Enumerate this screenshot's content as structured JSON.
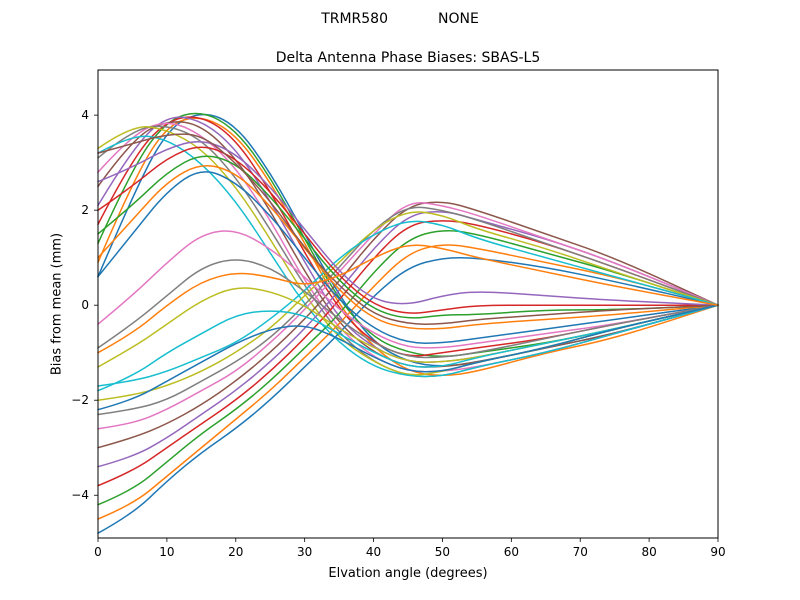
{
  "header": {
    "receiver": "TRMR580",
    "antenna": "NONE"
  },
  "chart_data": {
    "type": "line",
    "suptitle_left": "TRMR580",
    "suptitle_right": "NONE",
    "title": "Delta Antenna Phase Biases: SBAS-L5",
    "xlabel": "Elvation angle (degrees)",
    "ylabel": "Bias from mean (mm)",
    "xlim": [
      0,
      90
    ],
    "ylim": [
      -4.9,
      4.95
    ],
    "xticks": [
      0,
      10,
      20,
      30,
      40,
      50,
      60,
      70,
      80,
      90
    ],
    "yticks": [
      -4,
      -2,
      0,
      2,
      4
    ],
    "grid": false,
    "legend": null,
    "palette": [
      "#1f77b4",
      "#ff7f0e",
      "#2ca02c",
      "#d62728",
      "#9467bd",
      "#8c564b",
      "#e377c2",
      "#7f7f7f",
      "#bcbd22",
      "#17becf"
    ],
    "x": [
      0,
      5,
      10,
      15,
      20,
      25,
      30,
      35,
      40,
      45,
      50,
      55,
      65,
      75,
      90
    ],
    "series": [
      {
        "values": [
          0.6,
          2.3,
          3.7,
          4.1,
          3.8,
          2.8,
          1.5,
          0.2,
          -0.8,
          -1.2,
          -1.3,
          -1.2,
          -0.9,
          -0.6,
          0
        ]
      },
      {
        "values": [
          0.9,
          2.6,
          3.8,
          4.0,
          3.6,
          2.6,
          1.3,
          0.0,
          -0.9,
          -1.4,
          -1.5,
          -1.4,
          -1.0,
          -0.7,
          0
        ]
      },
      {
        "values": [
          1.3,
          2.9,
          3.9,
          4.1,
          3.7,
          2.7,
          1.4,
          0.1,
          -0.7,
          -1.0,
          -1.1,
          -1.0,
          -0.8,
          -0.5,
          0
        ]
      },
      {
        "values": [
          1.7,
          3.1,
          3.9,
          4.0,
          3.5,
          2.4,
          1.1,
          -0.1,
          -0.8,
          -1.1,
          -1.0,
          -0.9,
          -0.7,
          -0.4,
          0
        ]
      },
      {
        "values": [
          2.1,
          3.3,
          4.0,
          3.9,
          3.3,
          2.2,
          0.9,
          -0.3,
          -0.9,
          -1.2,
          -1.2,
          -1.1,
          -0.8,
          -0.5,
          0
        ]
      },
      {
        "values": [
          2.5,
          3.5,
          3.9,
          3.8,
          3.1,
          2.0,
          0.7,
          -0.4,
          -1.0,
          -1.3,
          -1.3,
          -1.2,
          -0.9,
          -0.6,
          0
        ]
      },
      {
        "values": [
          2.8,
          3.6,
          3.9,
          3.6,
          2.9,
          1.8,
          0.5,
          -0.5,
          -1.1,
          -1.4,
          -1.4,
          -1.3,
          -1.0,
          -0.6,
          0
        ]
      },
      {
        "values": [
          3.1,
          3.7,
          3.8,
          3.5,
          2.7,
          1.6,
          0.4,
          -0.6,
          -1.2,
          -1.5,
          -1.5,
          -1.3,
          -1.0,
          -0.6,
          0
        ]
      },
      {
        "values": [
          3.3,
          3.8,
          3.7,
          3.3,
          2.5,
          1.4,
          0.2,
          -0.7,
          -1.2,
          -1.5,
          -1.4,
          -1.2,
          -0.9,
          -0.5,
          0
        ]
      },
      {
        "values": [
          3.2,
          3.6,
          3.5,
          3.0,
          2.2,
          1.1,
          0.0,
          -0.8,
          -1.3,
          -1.5,
          -1.5,
          -1.3,
          -1.0,
          -0.6,
          0
        ]
      },
      {
        "values": [
          -4.8,
          -4.4,
          -3.7,
          -3.1,
          -2.6,
          -2.0,
          -1.3,
          -0.6,
          0.2,
          0.8,
          1.0,
          1.0,
          0.8,
          0.5,
          0
        ]
      },
      {
        "values": [
          -4.5,
          -4.2,
          -3.6,
          -3.0,
          -2.4,
          -1.8,
          -1.1,
          -0.4,
          0.4,
          1.1,
          1.3,
          1.2,
          0.9,
          0.6,
          0
        ]
      },
      {
        "values": [
          -4.2,
          -3.9,
          -3.3,
          -2.7,
          -2.2,
          -1.6,
          -0.9,
          -0.2,
          0.7,
          1.4,
          1.6,
          1.5,
          1.1,
          0.7,
          0
        ]
      },
      {
        "values": [
          -3.8,
          -3.5,
          -3.0,
          -2.5,
          -2.0,
          -1.4,
          -0.7,
          0.1,
          1.0,
          1.7,
          1.8,
          1.7,
          1.3,
          0.8,
          0
        ]
      },
      {
        "values": [
          -3.4,
          -3.2,
          -2.8,
          -2.3,
          -1.8,
          -1.2,
          -0.5,
          0.3,
          1.2,
          1.9,
          2.0,
          1.8,
          1.4,
          0.9,
          0
        ]
      },
      {
        "values": [
          -3.0,
          -2.8,
          -2.5,
          -2.1,
          -1.6,
          -1.0,
          -0.3,
          0.5,
          1.4,
          2.1,
          2.2,
          2.0,
          1.5,
          1.0,
          0
        ]
      },
      {
        "values": [
          -2.6,
          -2.5,
          -2.2,
          -1.8,
          -1.4,
          -0.8,
          -0.1,
          0.7,
          1.5,
          2.2,
          2.1,
          1.9,
          1.4,
          0.9,
          0
        ]
      },
      {
        "values": [
          -2.3,
          -2.2,
          -2.0,
          -1.6,
          -1.2,
          -0.7,
          0.0,
          0.8,
          1.6,
          2.1,
          2.0,
          1.8,
          1.3,
          0.8,
          0
        ]
      },
      {
        "values": [
          -2.0,
          -1.9,
          -1.7,
          -1.4,
          -1.0,
          -0.5,
          0.2,
          0.9,
          1.6,
          2.0,
          1.9,
          1.6,
          1.2,
          0.7,
          0
        ]
      },
      {
        "values": [
          -1.7,
          -1.6,
          -1.4,
          -1.1,
          -0.8,
          -0.3,
          0.3,
          1.0,
          1.5,
          1.8,
          1.7,
          1.4,
          1.0,
          0.6,
          0
        ]
      },
      {
        "values": [
          0.6,
          1.5,
          2.4,
          2.9,
          2.6,
          1.9,
          1.0,
          0.1,
          -0.5,
          -0.8,
          -0.8,
          -0.7,
          -0.5,
          -0.3,
          0
        ]
      },
      {
        "values": [
          1.0,
          1.8,
          2.6,
          3.0,
          2.8,
          2.1,
          1.2,
          0.3,
          -0.3,
          -0.5,
          -0.5,
          -0.4,
          -0.3,
          -0.2,
          0
        ]
      },
      {
        "values": [
          1.5,
          2.1,
          2.8,
          3.2,
          3.0,
          2.3,
          1.4,
          0.5,
          -0.1,
          -0.3,
          -0.2,
          -0.2,
          -0.1,
          -0.1,
          0
        ]
      },
      {
        "values": [
          2.0,
          2.5,
          3.1,
          3.4,
          3.1,
          2.4,
          1.5,
          0.6,
          0.0,
          -0.2,
          -0.1,
          0.0,
          0.0,
          0.0,
          0
        ]
      },
      {
        "values": [
          2.6,
          2.9,
          3.3,
          3.5,
          3.2,
          2.5,
          1.6,
          0.7,
          0.1,
          0.0,
          0.2,
          0.3,
          0.2,
          0.1,
          0
        ]
      },
      {
        "values": [
          3.2,
          3.4,
          3.6,
          3.6,
          3.0,
          2.2,
          1.2,
          0.4,
          -0.2,
          -0.4,
          -0.4,
          -0.3,
          -0.2,
          -0.1,
          0
        ]
      },
      {
        "values": [
          -0.4,
          0.2,
          0.9,
          1.5,
          1.6,
          1.2,
          0.6,
          -0.1,
          -0.6,
          -0.9,
          -0.9,
          -0.8,
          -0.6,
          -0.4,
          0
        ]
      },
      {
        "values": [
          -0.9,
          -0.4,
          0.2,
          0.8,
          1.0,
          0.8,
          0.3,
          -0.3,
          -0.8,
          -1.1,
          -1.1,
          -1.0,
          -0.7,
          -0.4,
          0
        ]
      },
      {
        "values": [
          -1.3,
          -0.9,
          -0.4,
          0.1,
          0.4,
          0.3,
          0.0,
          -0.5,
          -0.9,
          -1.2,
          -1.2,
          -1.1,
          -0.8,
          -0.5,
          0
        ]
      },
      {
        "values": [
          -1.8,
          -1.5,
          -1.0,
          -0.6,
          -0.2,
          -0.1,
          -0.2,
          -0.6,
          -1.0,
          -1.3,
          -1.3,
          -1.1,
          -0.8,
          -0.5,
          0
        ]
      },
      {
        "values": [
          -2.2,
          -2.0,
          -1.6,
          -1.2,
          -0.8,
          -0.5,
          -0.4,
          -0.7,
          -1.1,
          -1.4,
          -1.4,
          -1.2,
          -0.9,
          -0.5,
          0
        ]
      },
      {
        "values": [
          -1.0,
          -0.6,
          0.0,
          0.5,
          0.7,
          0.6,
          0.4,
          0.6,
          1.0,
          1.3,
          1.2,
          1.0,
          0.7,
          0.4,
          0
        ]
      }
    ]
  }
}
